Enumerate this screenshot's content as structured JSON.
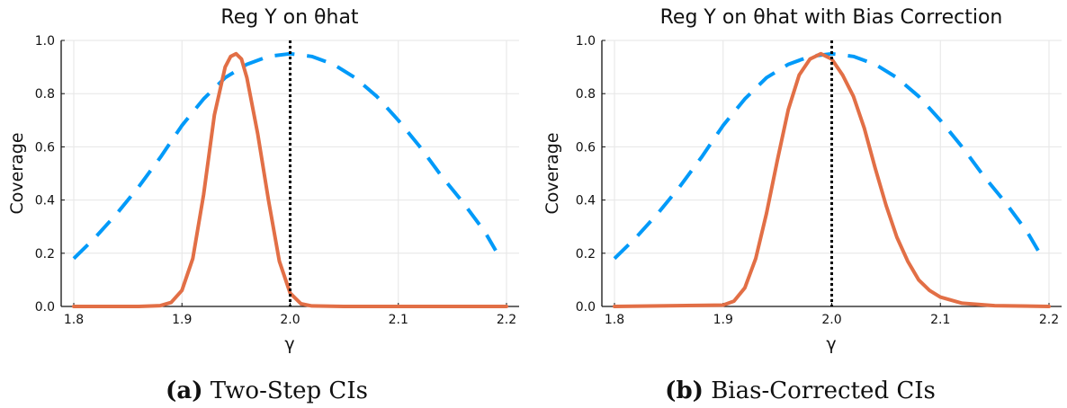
{
  "panels": [
    {
      "caption_tag": "(a)",
      "caption_text": "Two-Step CIs",
      "chart_data": {
        "type": "line",
        "title": "Reg Y on θhat",
        "xlabel": "γ",
        "ylabel": "Coverage",
        "xlim": [
          1.8,
          2.2
        ],
        "ylim": [
          0.0,
          1.0
        ],
        "xticks": [
          "1.8",
          "1.9",
          "2.0",
          "2.1",
          "2.2"
        ],
        "yticks": [
          "0.0",
          "0.2",
          "0.4",
          "0.6",
          "0.8",
          "1.0"
        ],
        "grid": true,
        "vline": 2.0,
        "series": [
          {
            "style": "dashed",
            "color": "#009af9",
            "x": [
              1.8,
              1.82,
              1.84,
              1.86,
              1.88,
              1.9,
              1.92,
              1.94,
              1.96,
              1.98,
              2.0,
              2.02,
              2.04,
              2.06,
              2.08,
              2.1,
              2.12,
              2.14,
              2.16,
              2.18,
              2.19
            ],
            "y": [
              0.18,
              0.26,
              0.35,
              0.45,
              0.56,
              0.68,
              0.78,
              0.86,
              0.91,
              0.94,
              0.95,
              0.94,
              0.91,
              0.86,
              0.79,
              0.7,
              0.6,
              0.49,
              0.39,
              0.28,
              0.21
            ]
          },
          {
            "style": "solid",
            "color": "#e26f46",
            "x": [
              1.8,
              1.86,
              1.88,
              1.89,
              1.9,
              1.91,
              1.92,
              1.93,
              1.94,
              1.945,
              1.95,
              1.955,
              1.96,
              1.97,
              1.98,
              1.99,
              2.0,
              2.01,
              2.02,
              2.05,
              2.2
            ],
            "y": [
              0.0,
              0.0,
              0.003,
              0.015,
              0.06,
              0.18,
              0.42,
              0.72,
              0.9,
              0.94,
              0.95,
              0.93,
              0.86,
              0.65,
              0.4,
              0.17,
              0.05,
              0.01,
              0.002,
              0.0,
              0.0
            ]
          }
        ]
      }
    },
    {
      "caption_tag": "(b)",
      "caption_text": "Bias-Corrected CIs",
      "chart_data": {
        "type": "line",
        "title": "Reg Y on θhat with Bias Correction",
        "xlabel": "γ",
        "ylabel": "Coverage",
        "xlim": [
          1.8,
          2.2
        ],
        "ylim": [
          0.0,
          1.0
        ],
        "xticks": [
          "1.8",
          "1.9",
          "2.0",
          "2.1",
          "2.2"
        ],
        "yticks": [
          "0.0",
          "0.2",
          "0.4",
          "0.6",
          "0.8",
          "1.0"
        ],
        "grid": true,
        "vline": 2.0,
        "series": [
          {
            "style": "dashed",
            "color": "#009af9",
            "x": [
              1.8,
              1.82,
              1.84,
              1.86,
              1.88,
              1.9,
              1.92,
              1.94,
              1.96,
              1.98,
              2.0,
              2.02,
              2.04,
              2.06,
              2.08,
              2.1,
              2.12,
              2.14,
              2.16,
              2.18,
              2.19
            ],
            "y": [
              0.18,
              0.26,
              0.35,
              0.45,
              0.56,
              0.68,
              0.78,
              0.86,
              0.91,
              0.94,
              0.95,
              0.94,
              0.91,
              0.86,
              0.79,
              0.7,
              0.6,
              0.49,
              0.39,
              0.28,
              0.21
            ]
          },
          {
            "style": "solid",
            "color": "#e26f46",
            "x": [
              1.8,
              1.9,
              1.91,
              1.92,
              1.93,
              1.94,
              1.95,
              1.96,
              1.97,
              1.98,
              1.99,
              2.0,
              2.01,
              2.02,
              2.03,
              2.04,
              2.05,
              2.06,
              2.07,
              2.08,
              2.09,
              2.1,
              2.12,
              2.15,
              2.2
            ],
            "y": [
              0.0,
              0.005,
              0.02,
              0.07,
              0.18,
              0.35,
              0.55,
              0.74,
              0.87,
              0.93,
              0.95,
              0.93,
              0.87,
              0.79,
              0.67,
              0.52,
              0.38,
              0.26,
              0.17,
              0.1,
              0.06,
              0.035,
              0.012,
              0.003,
              0.0
            ]
          }
        ]
      }
    }
  ]
}
